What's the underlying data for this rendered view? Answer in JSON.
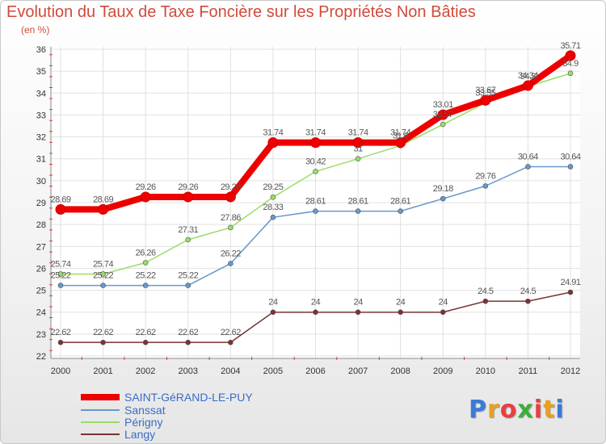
{
  "header": {
    "title": "Evolution du Taux de Taxe Foncière sur les Propriétés Non Bâties",
    "subtitle": "(en %)"
  },
  "logo": {
    "text": "Proxiti",
    "colors": [
      "#3a7bd5",
      "#e8a020",
      "#e84040",
      "#3ab03a",
      "#e84040",
      "#e8a020",
      "#3a7bd5"
    ]
  },
  "chart_data": {
    "type": "line",
    "title": "Evolution du Taux de Taxe Foncière sur les Propriétés Non Bâties",
    "ylabel": "(en %)",
    "xlabel": "",
    "x": [
      "2000",
      "2001",
      "2002",
      "2003",
      "2004",
      "2005",
      "2006",
      "2007",
      "2008",
      "2009",
      "2010",
      "2011",
      "2012"
    ],
    "ylim": [
      22,
      36
    ],
    "yticks": [
      "22",
      "23",
      "24",
      "25",
      "26",
      "27",
      "28",
      "29",
      "30",
      "31",
      "32",
      "33",
      "34",
      "35",
      "36"
    ],
    "grid": true,
    "legend_position": "bottom-left",
    "series": [
      {
        "name": "SAINT-GéRAND-LE-PUY",
        "color": "#ee0000",
        "values": [
          28.69,
          28.69,
          29.26,
          29.26,
          29.26,
          31.74,
          31.74,
          31.74,
          31.74,
          33.01,
          33.67,
          34.34,
          35.71
        ],
        "labels": [
          "28.69",
          "28.69",
          "29.26",
          "29.26",
          "29.26",
          "31.74",
          "31.74",
          "31.74",
          "31.74",
          "33.01",
          "33.67",
          "34.34",
          "35.71"
        ]
      },
      {
        "name": "Sanssat",
        "color": "#6699cc",
        "values": [
          25.22,
          25.22,
          25.22,
          25.22,
          26.22,
          28.33,
          28.61,
          28.61,
          28.61,
          29.18,
          29.76,
          30.64,
          30.64
        ],
        "labels": [
          "25.22",
          "25.22",
          "25.22",
          "25.22",
          "26.22",
          "28.33",
          "28.61",
          "28.61",
          "28.61",
          "29.18",
          "29.76",
          "30.64",
          "30.64"
        ]
      },
      {
        "name": "Périgny",
        "color": "#99dd66",
        "values": [
          25.74,
          25.74,
          26.26,
          27.31,
          27.86,
          29.25,
          30.42,
          31,
          31.6,
          32.57,
          33.55,
          34.3,
          34.9
        ],
        "labels": [
          "25.74",
          "25.74",
          "26.26",
          "27.31",
          "27.86",
          "29.25",
          "30.42",
          "31",
          "31.6",
          "32.57",
          "33.55",
          "34.3",
          "34.9"
        ]
      },
      {
        "name": "Langy",
        "color": "#7a3333",
        "values": [
          22.62,
          22.62,
          22.62,
          22.62,
          22.62,
          24,
          24,
          24,
          24,
          24,
          24.5,
          24.5,
          24.91
        ],
        "labels": [
          "22.62",
          "22.62",
          "22.62",
          "22.62",
          "22.62",
          "24",
          "24",
          "24",
          "24",
          "24",
          "24.5",
          "24.5",
          "24.91"
        ]
      }
    ]
  }
}
